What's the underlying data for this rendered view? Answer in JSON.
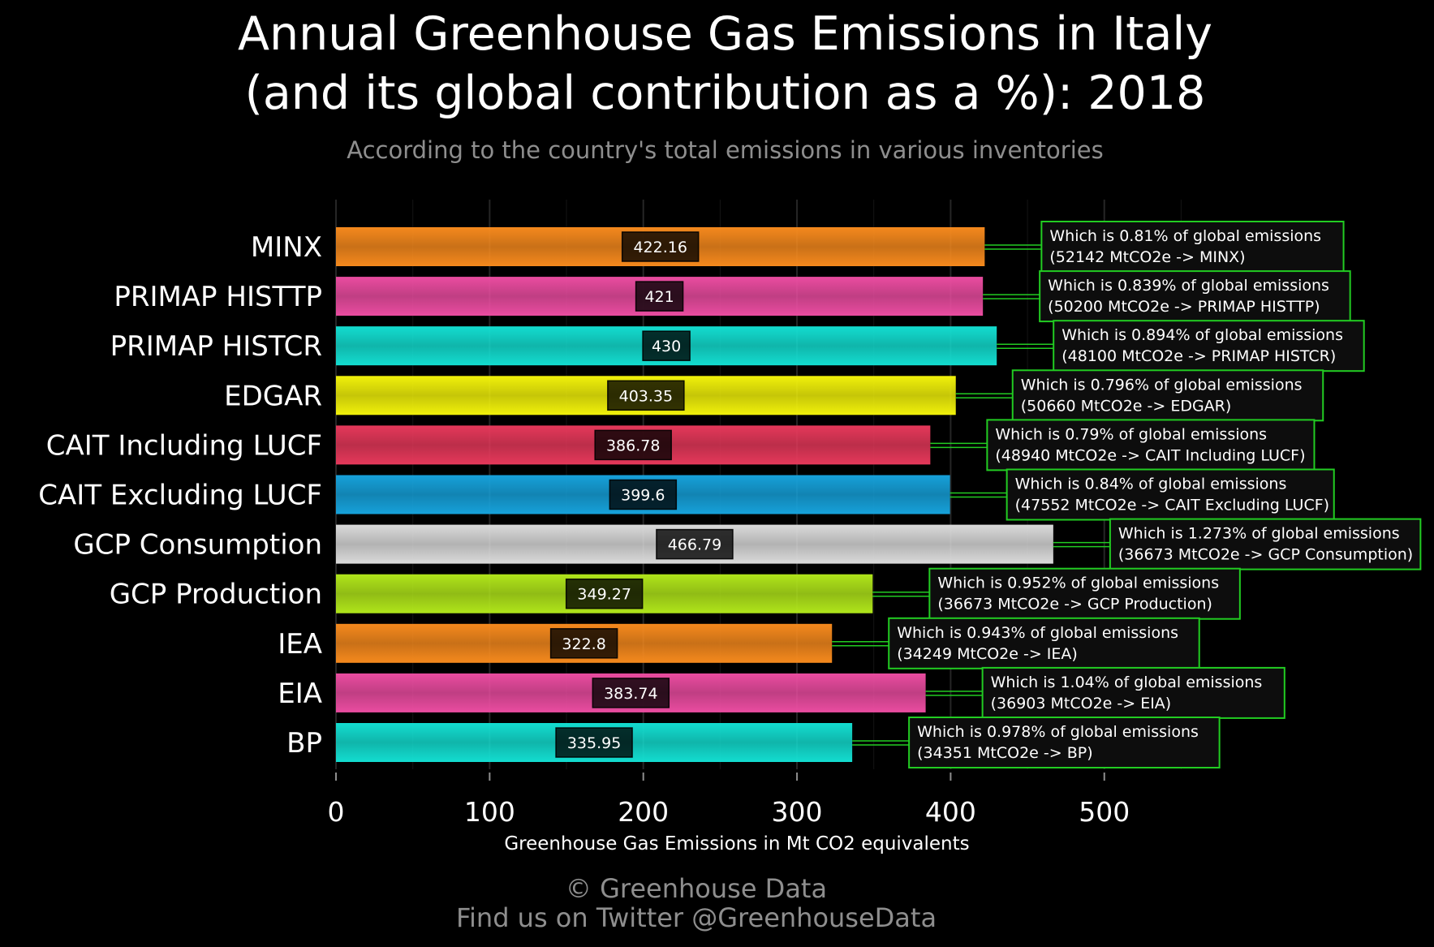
{
  "title_line1": "Annual Greenhouse Gas Emissions in Italy",
  "title_line2": "(and its global contribution as a %): 2018",
  "subtitle": "According to the country's total emissions in various inventories",
  "footer_line1": "© Greenhouse Data",
  "footer_line2": "Find us on Twitter @GreenhouseData",
  "chart_data": {
    "type": "bar",
    "orientation": "horizontal",
    "xlabel": "Greenhouse Gas Emissions in Mt CO2 equivalents",
    "xlim": [
      0,
      600
    ],
    "xticks": [
      0,
      100,
      200,
      300,
      400,
      500
    ],
    "grid": true,
    "categories": [
      "MINX",
      "PRIMAP HISTTP",
      "PRIMAP HISTCR",
      "EDGAR",
      "CAIT Including LUCF",
      "CAIT Excluding LUCF",
      "GCP Consumption",
      "GCP Production",
      "IEA",
      "EIA",
      "BP"
    ],
    "values": [
      422.16,
      421,
      430,
      403.35,
      386.78,
      399.6,
      466.79,
      349.27,
      322.8,
      383.74,
      335.95
    ],
    "value_labels": [
      "422.16",
      "421",
      "430",
      "403.35",
      "386.78",
      "399.6",
      "466.79",
      "349.27",
      "322.8",
      "383.74",
      "335.95"
    ],
    "colors": [
      "#f5891d",
      "#ea4ca0",
      "#13ddd0",
      "#f1f10a",
      "#e5385a",
      "#16a1da",
      "#dadada",
      "#b0e51a",
      "#f5891d",
      "#ea4ca0",
      "#13ddd0"
    ],
    "annotations": [
      {
        "line1": "Which is 0.81% of global emissions",
        "line2": "(52142 MtCO2e -> MINX)"
      },
      {
        "line1": "Which is 0.839% of global emissions",
        "line2": "(50200 MtCO2e -> PRIMAP HISTTP)"
      },
      {
        "line1": "Which is 0.894% of global emissions",
        "line2": "(48100 MtCO2e -> PRIMAP HISTCR)"
      },
      {
        "line1": "Which is 0.796% of global emissions",
        "line2": "(50660 MtCO2e -> EDGAR)"
      },
      {
        "line1": "Which is 0.79% of global emissions",
        "line2": "(48940 MtCO2e -> CAIT Including LUCF)"
      },
      {
        "line1": "Which is 0.84% of global emissions",
        "line2": "(47552 MtCO2e -> CAIT Excluding LUCF)"
      },
      {
        "line1": "Which is 1.273% of global emissions",
        "line2": "(36673 MtCO2e -> GCP Consumption)"
      },
      {
        "line1": "Which is 0.952% of global emissions",
        "line2": "(36673 MtCO2e -> GCP Production)"
      },
      {
        "line1": "Which is 0.943% of global emissions",
        "line2": "(34249 MtCO2e -> IEA)"
      },
      {
        "line1": "Which is 1.04% of global emissions",
        "line2": "(36903 MtCO2e -> EIA)"
      },
      {
        "line1": "Which is 0.978% of global emissions",
        "line2": "(34351 MtCO2e -> BP)"
      }
    ],
    "annotation_border_color": "#22cc22",
    "text_color": "#ffffff",
    "muted_color": "#8e8e8e"
  }
}
